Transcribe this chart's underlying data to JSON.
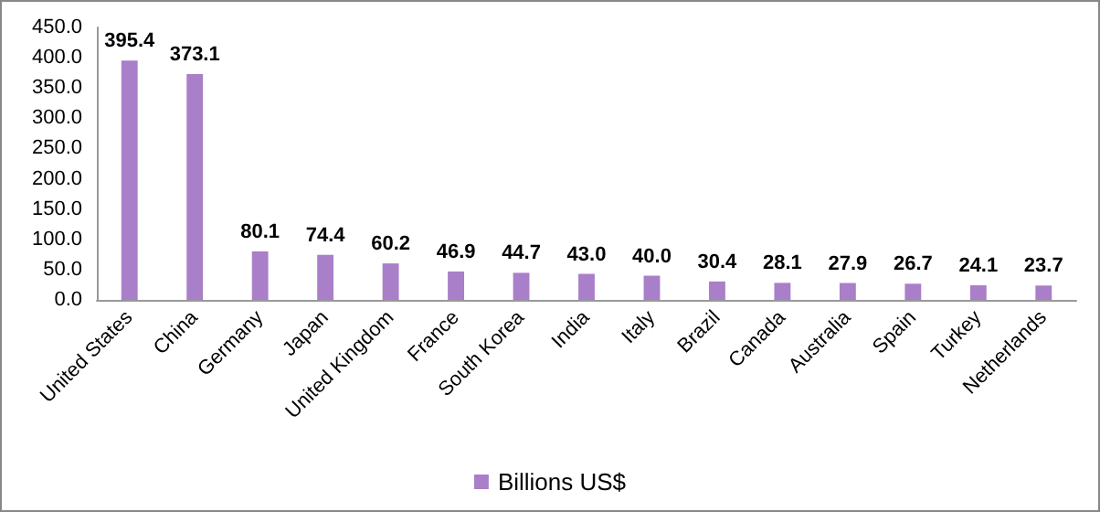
{
  "chart_data": {
    "type": "bar",
    "categories": [
      "United States",
      "China",
      "Germany",
      "Japan",
      "United Kingdom",
      "France",
      "South Korea",
      "India",
      "Italy",
      "Brazil",
      "Canada",
      "Australia",
      "Spain",
      "Turkey",
      "Netherlands"
    ],
    "series": [
      {
        "name": "Billions US$",
        "color": "#a97fc9",
        "values": [
          395.4,
          373.1,
          80.1,
          74.4,
          60.2,
          46.9,
          44.7,
          43.0,
          40.0,
          30.4,
          28.1,
          27.9,
          26.7,
          24.1,
          23.7
        ],
        "value_labels": [
          "395.4",
          "373.1",
          "80.1",
          "74.4",
          "60.2",
          "46.9",
          "44.7",
          "43.0",
          "40.0",
          "30.4",
          "28.1",
          "27.9",
          "26.7",
          "24.1",
          "23.7"
        ]
      }
    ],
    "ylim": [
      0,
      450
    ],
    "yticks": [
      {
        "value": 0,
        "label": "0.0"
      },
      {
        "value": 50,
        "label": "50.0"
      },
      {
        "value": 100,
        "label": "100.0"
      },
      {
        "value": 150,
        "label": "150.0"
      },
      {
        "value": 200,
        "label": "200.0"
      },
      {
        "value": 250,
        "label": "250.0"
      },
      {
        "value": 300,
        "label": "300.0"
      },
      {
        "value": 350,
        "label": "350.0"
      },
      {
        "value": 400,
        "label": "400.0"
      },
      {
        "value": 450,
        "label": "450.0"
      }
    ],
    "grid": false,
    "legend": "bottom"
  }
}
